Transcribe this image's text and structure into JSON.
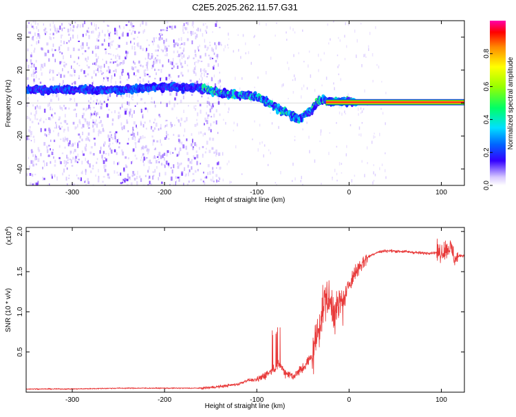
{
  "title": "C2E5.2025.262.11.57.G31",
  "colors": {
    "axis": "#000000",
    "snr_line": "#e83a3a",
    "core_line": "#ff2020",
    "core_inner": "#ffd400",
    "core_edge": "#22cc22"
  },
  "chart_data": [
    {
      "type": "heatmap",
      "name": "spectrogram",
      "title": "C2E5.2025.262.11.57.G31",
      "xlabel": "Height of straight line (km)",
      "ylabel": "Frequency (Hz)",
      "xlim": [
        -350,
        125
      ],
      "ylim": [
        -50,
        50
      ],
      "xticks": [
        -300,
        -200,
        -100,
        0,
        100
      ],
      "yticks": [
        -40,
        -20,
        0,
        20,
        40
      ],
      "xtick_labels": [
        "-300",
        "-200",
        "-100",
        "0",
        "100"
      ],
      "ytick_labels": [
        "-40",
        "-20",
        "0",
        "20",
        "40"
      ],
      "ridge": {
        "x": [
          -350,
          -300,
          -250,
          -200,
          -160,
          -140,
          -120,
          -100,
          -90,
          -80,
          -70,
          -60,
          -55,
          -50,
          -45,
          -40,
          -35,
          -30,
          -25,
          -20,
          -10,
          0,
          10,
          50,
          100,
          125
        ],
        "y": [
          8,
          8,
          8,
          10,
          9,
          6,
          5,
          4,
          1,
          -2,
          -5,
          -8,
          -10,
          -8,
          -6,
          -4,
          0,
          2,
          1,
          1,
          1,
          1,
          0.5,
          0.5,
          0.5,
          0.5
        ]
      },
      "colorbar": {
        "label": "Normalized spectral amplitude",
        "range": [
          0,
          1
        ],
        "ticks": [
          0.0,
          0.2,
          0.4,
          0.6,
          0.8
        ],
        "tick_labels": [
          "0.0",
          "0.2",
          "0.4",
          "0.6",
          "0.8"
        ]
      }
    },
    {
      "type": "line",
      "name": "snr",
      "xlabel": "Height of straight line (km)",
      "ylabel": "SNR (10 * v/v)",
      "multiplier": "(x10",
      "multiplier_exp": "4",
      "multiplier_close": ")",
      "xlim": [
        -350,
        125
      ],
      "ylim": [
        0,
        2.05
      ],
      "xticks": [
        -300,
        -200,
        -100,
        0,
        100
      ],
      "yticks": [
        0.5,
        1.0,
        1.5,
        2.0
      ],
      "xtick_labels": [
        "-300",
        "-200",
        "-100",
        "0",
        "100"
      ],
      "ytick_labels": [
        "0.5",
        "1.0",
        "1.5",
        "2.0"
      ],
      "series": [
        {
          "name": "SNR",
          "x": [
            -350,
            -300,
            -250,
            -200,
            -160,
            -140,
            -120,
            -110,
            -100,
            -90,
            -80,
            -75,
            -70,
            -60,
            -50,
            -40,
            -35,
            -30,
            -25,
            -20,
            -15,
            -10,
            -5,
            0,
            10,
            20,
            30,
            40,
            60,
            80,
            100,
            105,
            110,
            115,
            120,
            125
          ],
          "y": [
            0.04,
            0.04,
            0.05,
            0.05,
            0.05,
            0.07,
            0.1,
            0.15,
            0.15,
            0.22,
            0.3,
            0.35,
            0.25,
            0.2,
            0.3,
            0.45,
            0.7,
            0.95,
            1.2,
            1.1,
            1.0,
            1.1,
            1.15,
            1.35,
            1.55,
            1.68,
            1.74,
            1.76,
            1.75,
            1.73,
            1.74,
            1.78,
            1.8,
            1.65,
            1.7,
            1.7
          ]
        }
      ]
    }
  ]
}
